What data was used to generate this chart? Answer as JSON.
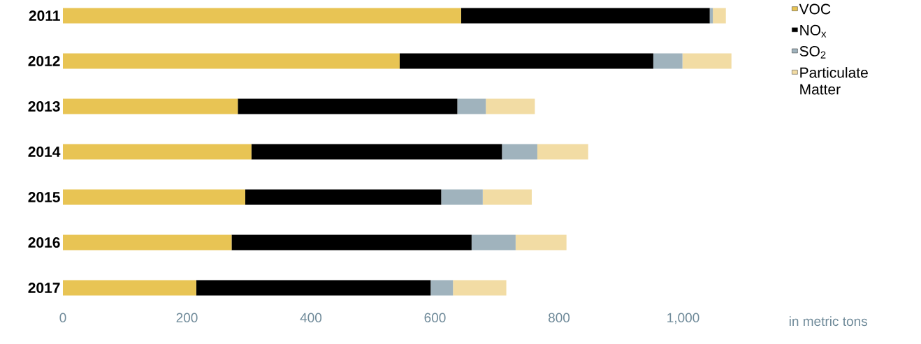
{
  "chart_data": {
    "type": "bar",
    "orientation": "horizontal",
    "stacked": true,
    "categories": [
      "2011",
      "2012",
      "2013",
      "2014",
      "2015",
      "2016",
      "2017"
    ],
    "series": [
      {
        "name": "VOC",
        "color": "#e8c454",
        "values": [
          642,
          543,
          282,
          304,
          294,
          272,
          215
        ]
      },
      {
        "name": "NO$_{x}$",
        "color": "#000000",
        "values": [
          401,
          409,
          354,
          404,
          316,
          387,
          378
        ]
      },
      {
        "name": "SO$_{2}$",
        "color": "#a0b3bd",
        "values": [
          5,
          47,
          46,
          57,
          67,
          71,
          36
        ]
      },
      {
        "name": "Particulate Matter",
        "color": "#f2dca4",
        "values": [
          21,
          79,
          79,
          82,
          79,
          82,
          86
        ]
      }
    ],
    "xlim": [
      0,
      1080
    ],
    "xticks": [
      0,
      200,
      400,
      600,
      800,
      {
        "value": 1000,
        "label": "1,000"
      }
    ],
    "annotations": [
      "in metric tons"
    ],
    "legend": "top right"
  }
}
